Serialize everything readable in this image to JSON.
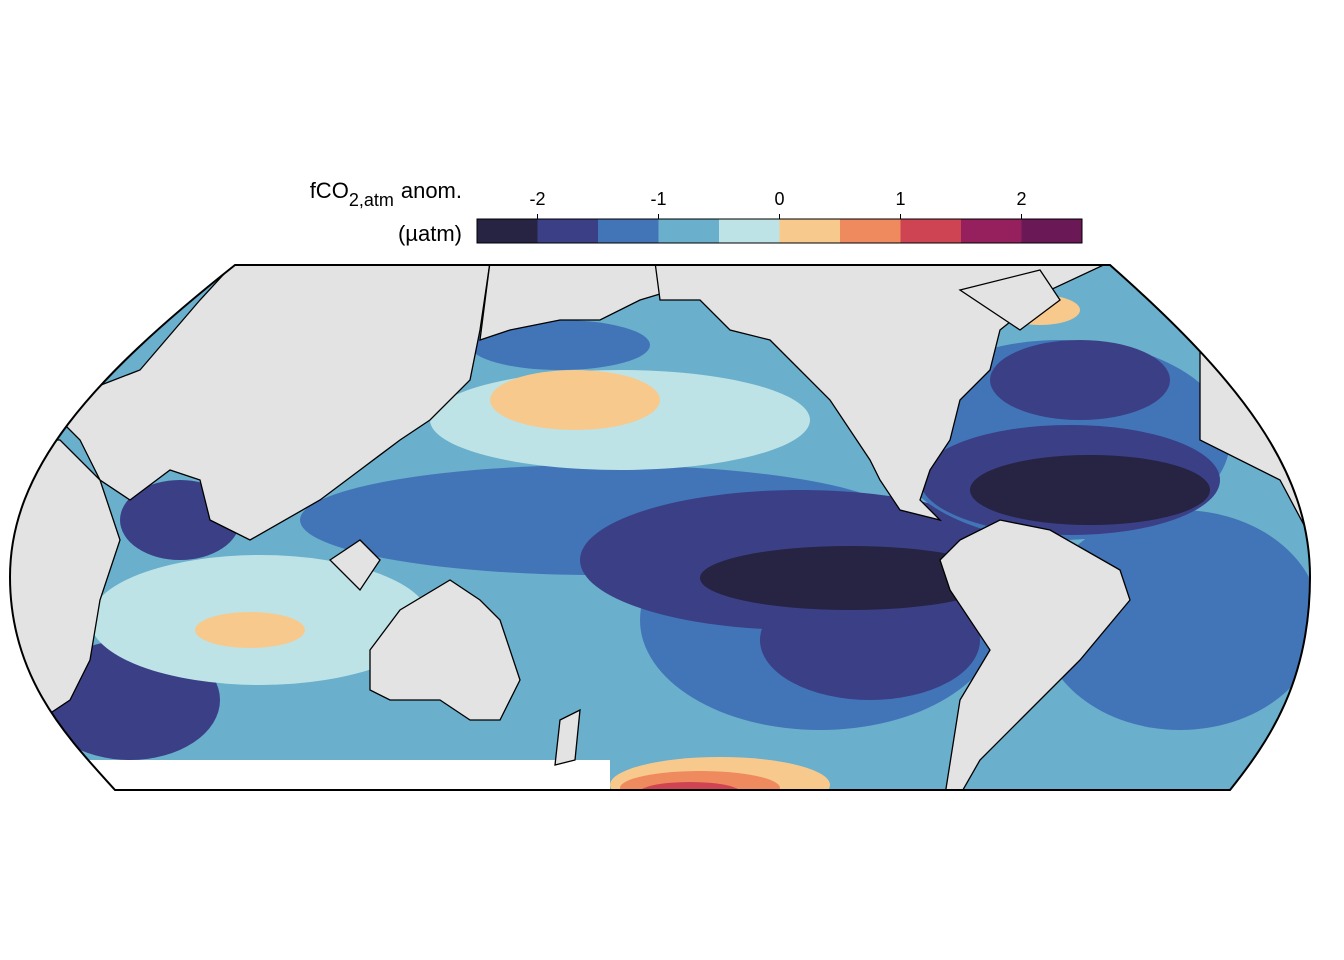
{
  "colorbar": {
    "title": "fCO",
    "title_subscript": "2,atm",
    "title_suffix": "anom.",
    "unit": "(µatm)",
    "breaks": [
      -2.5,
      -2,
      -1.5,
      -1,
      -0.5,
      0,
      0.5,
      1,
      1.5,
      2,
      2.5
    ],
    "colors": [
      "#262343",
      "#3a3f86",
      "#4274b8",
      "#6aafcc",
      "#bde3e6",
      "#f8c98d",
      "#ef8a5e",
      "#cf4452",
      "#961f5e",
      "#6a1856"
    ],
    "lim": [
      -2.5,
      2.5
    ],
    "ticks": [
      -2,
      -1,
      0,
      1,
      2
    ]
  }
}
